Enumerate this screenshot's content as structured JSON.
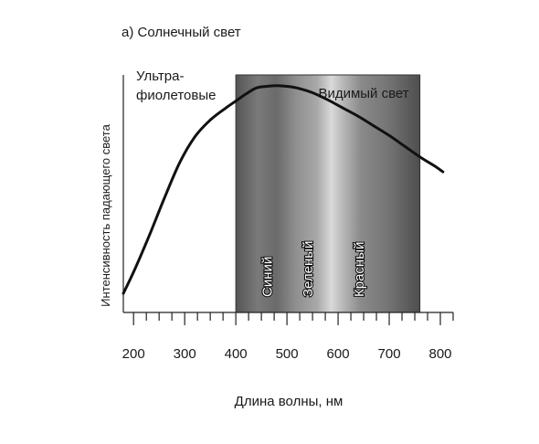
{
  "chart_data": {
    "type": "line",
    "title": "а) Солнечный свет",
    "xlabel": "Длина волны, нм",
    "ylabel": "Интенсивность падающего света",
    "xlim": [
      180,
      825
    ],
    "ylim": [
      0,
      1.0
    ],
    "x_ticks": [
      200,
      300,
      400,
      500,
      600,
      700,
      800
    ],
    "x_tick_labels": [
      "200",
      "300",
      "400",
      "500",
      "600",
      "700",
      "800"
    ],
    "series": [
      {
        "x": [
          180,
          200,
          230,
          260,
          290,
          320,
          350,
          380,
          400,
          420,
          440,
          460,
          480,
          500,
          520,
          550,
          580,
          610,
          640,
          670,
          700,
          730,
          760,
          790,
          805
        ],
        "y": [
          0.08,
          0.17,
          0.32,
          0.48,
          0.63,
          0.74,
          0.81,
          0.86,
          0.89,
          0.92,
          0.945,
          0.952,
          0.955,
          0.952,
          0.945,
          0.925,
          0.895,
          0.86,
          0.825,
          0.785,
          0.745,
          0.7,
          0.655,
          0.615,
          0.592
        ],
        "color": "#111111"
      }
    ],
    "regions": [
      {
        "label": "Ультра- фиолетовые",
        "lines": [
          "Ультра-",
          "фиолетовые"
        ],
        "x_range": [
          180,
          400
        ]
      },
      {
        "label": "Видимый свет",
        "x_range": [
          400,
          760
        ]
      }
    ],
    "bands": [
      {
        "label": "Синий",
        "x": 470
      },
      {
        "label": "Зеленый",
        "x": 550
      },
      {
        "label": "Красный",
        "x": 650
      }
    ],
    "grid": false,
    "legend": "none"
  }
}
